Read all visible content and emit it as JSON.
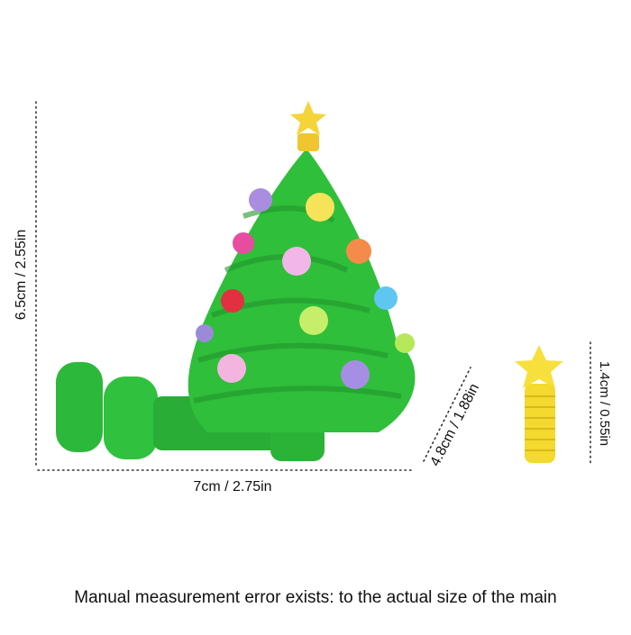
{
  "measurements": {
    "height": "6.5cm / 2.55in",
    "width": "7cm / 2.75in",
    "depth": "4.8cm / 1.88in",
    "star_height": "1.4cm / 0.55in"
  },
  "caption": "Manual measurement error exists: to the actual size of the main"
}
